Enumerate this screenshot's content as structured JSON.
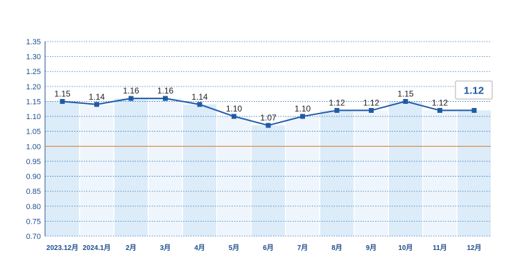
{
  "chart_data": {
    "type": "line",
    "title": "",
    "xlabel": "",
    "ylabel": "",
    "categories": [
      "2023.12月",
      "2024.1月",
      "2月",
      "3月",
      "4月",
      "5月",
      "6月",
      "7月",
      "8月",
      "9月",
      "10月",
      "11月",
      "12月"
    ],
    "series": [
      {
        "values": [
          1.15,
          1.14,
          1.16,
          1.16,
          1.14,
          1.1,
          1.07,
          1.1,
          1.12,
          1.12,
          1.15,
          1.12,
          1.12
        ]
      }
    ],
    "data_labels": [
      "1.15",
      "1.14",
      "1.16",
      "1.16",
      "1.14",
      "1.10",
      "1.07",
      "1.10",
      "1.12",
      "1.12",
      "1.15",
      "1.12",
      ""
    ],
    "yticks": [
      "0.70",
      "0.75",
      "0.80",
      "0.85",
      "0.90",
      "0.95",
      "1.00",
      "1.05",
      "1.10",
      "1.15",
      "1.20",
      "1.25",
      "1.30",
      "1.35"
    ],
    "ylim": [
      0.7,
      1.35
    ],
    "reference_line": 1.0,
    "callout": "1.12",
    "grid": true,
    "colors": {
      "line": "#1f5aa6",
      "grid": "#2f6fb5",
      "reference": "#e08a3c",
      "band_a": "#dcecf9",
      "band_b": "#eef5fc",
      "callout_border": "#c9c9c9"
    }
  }
}
